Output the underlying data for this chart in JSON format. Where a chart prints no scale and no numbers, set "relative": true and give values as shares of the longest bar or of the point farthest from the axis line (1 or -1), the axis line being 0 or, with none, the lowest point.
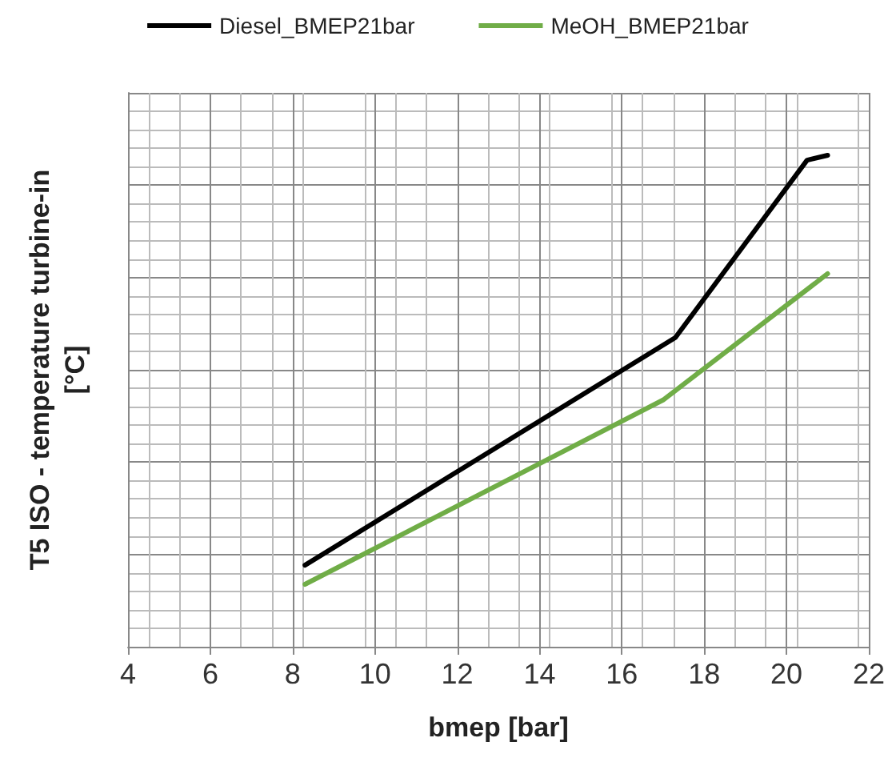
{
  "chart_data": {
    "type": "line",
    "xlabel": "bmep [bar]",
    "ylabel": "T5 ISO - temperature turbine-in\n[°C]",
    "relative": true,
    "xlim": [
      4,
      22
    ],
    "xticks": [
      4,
      6,
      8,
      10,
      12,
      14,
      16,
      18,
      20,
      22
    ],
    "grid": true,
    "legend": "top",
    "marker": "none",
    "line_style": "solid",
    "series": [
      {
        "name": "Diesel_BMEP21bar",
        "color": "#000000",
        "x": [
          8.3,
          17.3,
          20.5,
          21
        ],
        "values": [
          0.166,
          0.629,
          0.99,
          1
        ]
      },
      {
        "name": "MeOH_BMEP21bar",
        "color": "#70ad47",
        "x": [
          8.3,
          17.0,
          21
        ],
        "values": [
          0.127,
          0.502,
          0.759
        ]
      }
    ]
  }
}
